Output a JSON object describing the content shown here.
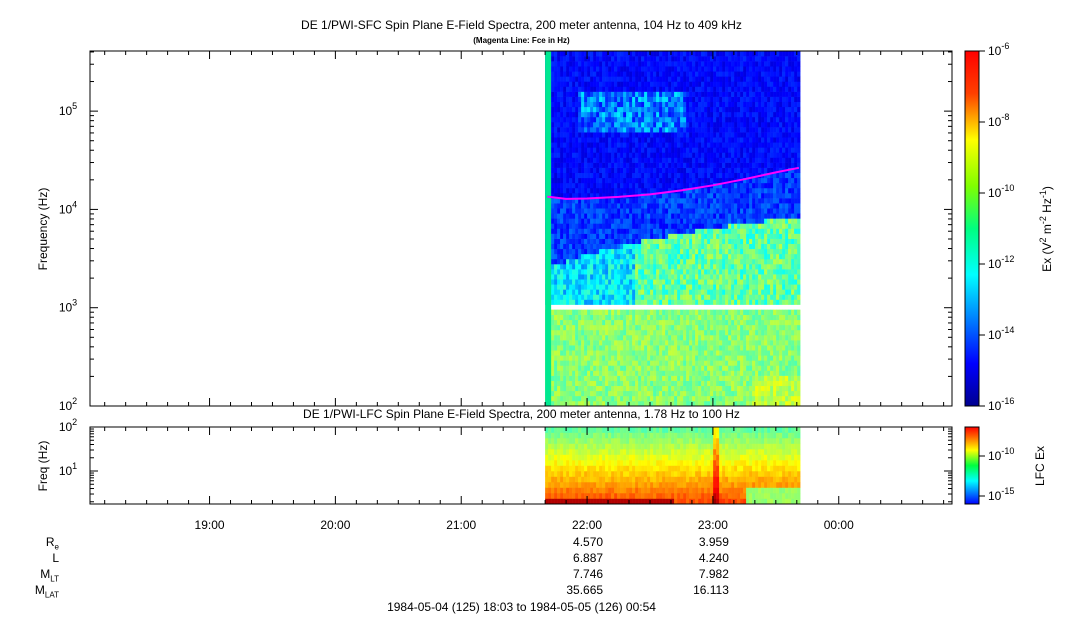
{
  "chart_data": [
    {
      "type": "heatmap",
      "title": "DE 1/PWI-SFC  Spin Plane E-Field Spectra, 200 meter antenna, 104 Hz to 409 kHz",
      "subtitle": "(Magenta Line: Fce in Hz)",
      "ylabel": "Frequency (Hz)",
      "yscale": "log",
      "ylim": [
        100,
        409000
      ],
      "yticks": [
        {
          "value": 100,
          "base": "10",
          "exp": "2"
        },
        {
          "value": 1000,
          "base": "10",
          "exp": "3"
        },
        {
          "value": 10000,
          "base": "10",
          "exp": "4"
        },
        {
          "value": 100000,
          "base": "10",
          "exp": "5"
        }
      ],
      "colorbar": {
        "label_parts": [
          "Ex (V",
          "2",
          " m",
          "-2",
          " Hz",
          "-1",
          ")"
        ],
        "scale": "log",
        "range": [
          1e-16,
          1e-06
        ],
        "ticks": [
          {
            "value": 1e-06,
            "base": "10",
            "exp": "-6"
          },
          {
            "value": 1e-08,
            "base": "10",
            "exp": "-8"
          },
          {
            "value": 1e-10,
            "base": "10",
            "exp": "-10"
          },
          {
            "value": 1e-12,
            "base": "10",
            "exp": "-12"
          },
          {
            "value": 1e-14,
            "base": "10",
            "exp": "-14"
          },
          {
            "value": 1e-16,
            "base": "10",
            "exp": "-16"
          }
        ]
      },
      "data_coverage": {
        "start": "21:40",
        "end": "23:43"
      },
      "fce_line_color": "#ff00ff",
      "fce_line": [
        {
          "t": "21:41",
          "f": 13500
        },
        {
          "t": "21:50",
          "f": 12800
        },
        {
          "t": "22:00",
          "f": 12900
        },
        {
          "t": "22:15",
          "f": 13400
        },
        {
          "t": "22:30",
          "f": 14200
        },
        {
          "t": "22:45",
          "f": 15600
        },
        {
          "t": "23:00",
          "f": 17600
        },
        {
          "t": "23:15",
          "f": 20300
        },
        {
          "t": "23:30",
          "f": 23800
        },
        {
          "t": "23:41",
          "f": 26500
        }
      ]
    },
    {
      "type": "heatmap",
      "title": "DE 1/PWI-LFC  Spin Plane E-Field Spectra, 200 meter antenna, 1.78 Hz to 100 Hz",
      "ylabel": "Freq (Hz)",
      "yscale": "log",
      "ylim": [
        1.78,
        100
      ],
      "yticks": [
        {
          "value": 10,
          "base": "10",
          "exp": "1"
        },
        {
          "value": 100,
          "base": "10",
          "exp": "2"
        }
      ],
      "colorbar": {
        "label": "LFC Ex",
        "scale": "log",
        "ticks": [
          {
            "value": 1e-10,
            "base": "10",
            "exp": "-10"
          },
          {
            "value": 1e-15,
            "base": "10",
            "exp": "-15"
          }
        ]
      },
      "data_coverage": {
        "start": "21:40",
        "end": "23:43"
      }
    }
  ],
  "time_axis": {
    "start": "18:03",
    "end": "00:54",
    "tick_labels": [
      "19:00",
      "20:00",
      "21:00",
      "22:00",
      "23:00",
      "00:00"
    ]
  },
  "ephemeris": {
    "rows": [
      {
        "name": "R",
        "sub": "e",
        "values": [
          "4.570",
          "3.959"
        ]
      },
      {
        "name": "L",
        "sub": "",
        "values": [
          "6.887",
          "4.240"
        ]
      },
      {
        "name": "M",
        "sub": "LT",
        "values": [
          "7.746",
          "7.982"
        ]
      },
      {
        "name": "M",
        "sub": "LAT",
        "values": [
          "35.665",
          "16.113"
        ]
      }
    ],
    "at_times": [
      "22:00",
      "23:00"
    ]
  },
  "footer": "1984-05-04 (125) 18:03 to 1984-05-05 (126) 00:54"
}
